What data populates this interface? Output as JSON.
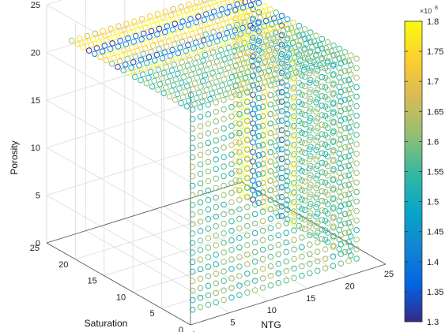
{
  "chart_data": {
    "type": "scatter",
    "subtype": "3d-scatter",
    "title": "",
    "xlabel": "NTG",
    "ylabel": "Saturation",
    "zlabel": "Porosity",
    "xlim": [
      0,
      25
    ],
    "ylim": [
      0,
      25
    ],
    "zlim": [
      0,
      25
    ],
    "xticks": [
      "0",
      "5",
      "10",
      "15",
      "20",
      "25"
    ],
    "yticks": [
      "0",
      "5",
      "10",
      "15",
      "20",
      "25"
    ],
    "zticks": [
      "0",
      "5",
      "10",
      "15",
      "20",
      "25"
    ],
    "grid": true,
    "marker": "open-circle",
    "grid_points": {
      "x": [
        1,
        22
      ],
      "y": [
        1,
        22
      ],
      "z": [
        1,
        22
      ],
      "step": 1
    },
    "colorbar": {
      "colormap": "parula",
      "min": 1.3,
      "max": 1.8,
      "ticks": [
        "1.3",
        "1.35",
        "1.4",
        "1.45",
        "1.5",
        "1.55",
        "1.6",
        "1.65",
        "1.7",
        "1.75",
        "1.8"
      ],
      "multiplier": "×10",
      "exponent": "8"
    },
    "color_bands": {
      "description_by_saturation_index": [
        {
          "y": 22,
          "value": 1.7
        },
        {
          "y": 21,
          "value": 1.78
        },
        {
          "y": 20,
          "value": 1.8
        },
        {
          "y": 19,
          "value": 1.33
        },
        {
          "y": 18,
          "value": 1.42
        },
        {
          "y": 17,
          "value": 1.78
        },
        {
          "y": 16,
          "value": 1.72
        },
        {
          "y": 15,
          "value": 1.62
        },
        {
          "y": 14,
          "value": 1.36
        },
        {
          "y": 13,
          "value": 1.52
        },
        {
          "y": 12,
          "value": 1.78
        }
      ],
      "interior_value": 1.58
    }
  }
}
